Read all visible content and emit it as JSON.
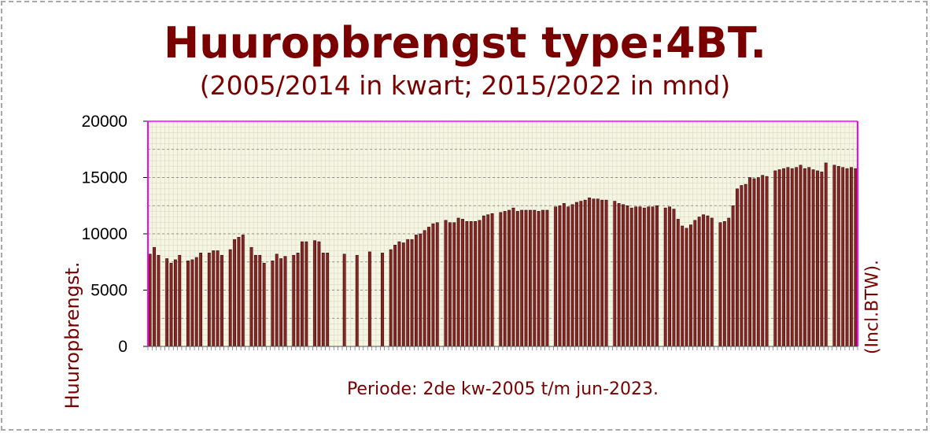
{
  "chart_data": {
    "type": "bar",
    "title": "Huuropbrengst type:4BT.",
    "subtitle": "(2005/2014 in kwart; 2015/2022 in mnd)",
    "xlabel": "Periode: 2de kw-2005 t/m jun-2023.",
    "ylabel": "Huuropbrengst.",
    "y2label": "(Incl.BTW).",
    "ylim": [
      0,
      20000
    ],
    "yticks": [
      0,
      5000,
      10000,
      15000,
      20000
    ],
    "ytick_labels": [
      "0",
      "5000",
      "10000",
      "15000",
      "20000"
    ],
    "grid": true,
    "legend": "none",
    "colors": {
      "bar_fill": "#8b2323",
      "bar_edge": "#1a0000",
      "plot_background": "#f5f5e3",
      "plot_border": "#ff00ff",
      "text": "#7a0000"
    },
    "values": [
      8200,
      8800,
      8100,
      0,
      7800,
      7400,
      7700,
      8100,
      0,
      7600,
      7700,
      7900,
      8300,
      0,
      8300,
      8500,
      8500,
      8100,
      0,
      8600,
      9500,
      9700,
      9900,
      0,
      8800,
      8100,
      8100,
      7400,
      0,
      7600,
      8200,
      7800,
      8000,
      0,
      8100,
      8300,
      9300,
      9300,
      0,
      9400,
      9300,
      8300,
      8300,
      0,
      0,
      0,
      8200,
      0,
      0,
      8100,
      0,
      0,
      8400,
      0,
      0,
      8300,
      0,
      8600,
      9000,
      9300,
      9200,
      9500,
      9500,
      9900,
      10000,
      10300,
      10600,
      10900,
      11000,
      0,
      11200,
      11000,
      11000,
      11400,
      11300,
      11100,
      11100,
      11100,
      11200,
      11600,
      11700,
      11800,
      0,
      11900,
      12000,
      12100,
      12300,
      12000,
      12100,
      12100,
      12100,
      12100,
      12000,
      12100,
      12100,
      0,
      12400,
      12500,
      12700,
      12400,
      12600,
      12800,
      12900,
      13000,
      13200,
      13100,
      13100,
      13000,
      13000,
      0,
      12900,
      12700,
      12600,
      12500,
      12300,
      12400,
      12400,
      12300,
      12400,
      12400,
      12500,
      0,
      12300,
      12400,
      12200,
      11300,
      10700,
      10500,
      10800,
      11200,
      11500,
      11700,
      11600,
      11400,
      0,
      11000,
      11100,
      11400,
      12500,
      14000,
      14300,
      14400,
      15000,
      14900,
      15000,
      15200,
      15100,
      0,
      15600,
      15700,
      15800,
      15900,
      15800,
      15900,
      16100,
      15800,
      15900,
      15700,
      15600,
      15500,
      16300,
      0,
      16100,
      16000,
      15900,
      15800,
      15900,
      15800
    ]
  }
}
